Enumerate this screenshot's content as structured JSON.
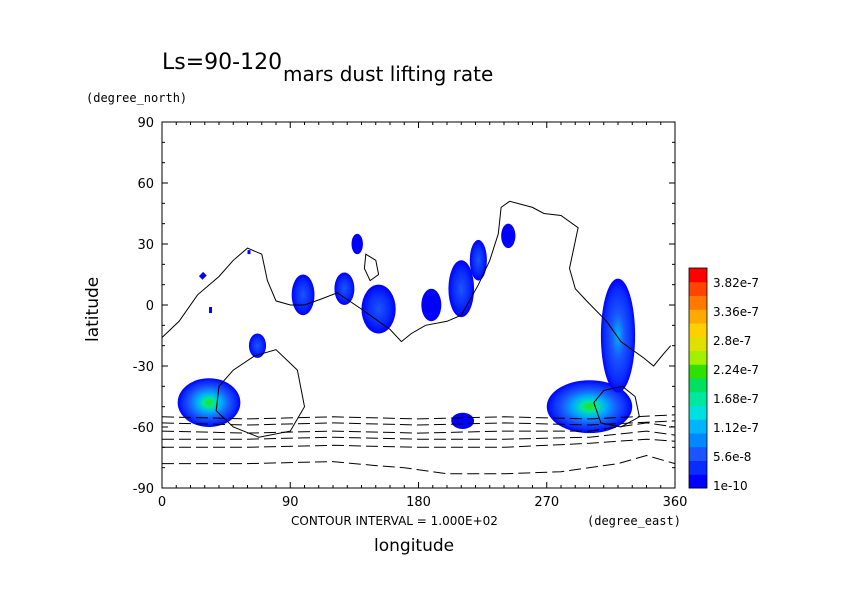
{
  "header": {
    "season_label": "Ls=90-120",
    "title": "mars dust lifting rate",
    "y_unit": "(degree_north)",
    "x_unit": "(degree_east)",
    "contour_note": "CONTOUR INTERVAL = 1.000E+02"
  },
  "chart_data": {
    "type": "heatmap",
    "title": "mars dust lifting rate",
    "xlabel": "longitude",
    "ylabel": "latitude",
    "xlim": [
      0,
      360
    ],
    "ylim": [
      -90,
      90
    ],
    "xticks": [
      0,
      90,
      180,
      270,
      360
    ],
    "yticks": [
      90,
      60,
      30,
      0,
      -30,
      -60,
      -90
    ],
    "colorbar": {
      "labels": [
        "3.82e-7",
        "3.36e-7",
        "2.8e-7",
        "2.24e-7",
        "1.68e-7",
        "1.12e-7",
        "5.6e-8",
        "1e-10"
      ],
      "colors": [
        "#0000ff",
        "#0a2cff",
        "#1a55ff",
        "#0088ff",
        "#00b4ff",
        "#00e0e0",
        "#00e8a0",
        "#00e060",
        "#30e000",
        "#a0f000",
        "#e0e000",
        "#ffd000",
        "#ffaa00",
        "#ff7800",
        "#ff4400",
        "#ff0000"
      ]
    },
    "regions": [
      {
        "lon": 33,
        "lat": -48,
        "rx": 22,
        "ry": 12,
        "peak": "1.68e-7"
      },
      {
        "lon": 67,
        "lat": -20,
        "rx": 6,
        "ry": 6,
        "peak": "5.6e-8"
      },
      {
        "lon": 99,
        "lat": 5,
        "rx": 8,
        "ry": 10,
        "peak": "5.6e-8"
      },
      {
        "lon": 128,
        "lat": 8,
        "rx": 7,
        "ry": 8,
        "peak": "5.6e-8"
      },
      {
        "lon": 137,
        "lat": 30,
        "rx": 4,
        "ry": 5,
        "peak": "1e-10"
      },
      {
        "lon": 152,
        "lat": -2,
        "rx": 12,
        "ry": 12,
        "peak": "5.6e-8"
      },
      {
        "lon": 189,
        "lat": 0,
        "rx": 7,
        "ry": 8,
        "peak": "1e-10"
      },
      {
        "lon": 210,
        "lat": 8,
        "rx": 9,
        "ry": 14,
        "peak": "5.6e-8"
      },
      {
        "lon": 222,
        "lat": 22,
        "rx": 6,
        "ry": 10,
        "peak": "5.6e-8"
      },
      {
        "lon": 243,
        "lat": 34,
        "rx": 5,
        "ry": 6,
        "peak": "1e-10"
      },
      {
        "lon": 211,
        "lat": -57,
        "rx": 8,
        "ry": 4,
        "peak": "1e-10"
      },
      {
        "lon": 300,
        "lat": -50,
        "rx": 30,
        "ry": 13,
        "peak": "1.68e-7"
      },
      {
        "lon": 320,
        "lat": -15,
        "rx": 12,
        "ry": 28,
        "peak": "1.12e-7"
      }
    ],
    "contours": {
      "coast": [
        [
          0,
          -16
        ],
        [
          12,
          -8
        ],
        [
          25,
          5
        ],
        [
          40,
          14
        ],
        [
          50,
          22
        ],
        [
          60,
          28
        ],
        [
          70,
          25
        ],
        [
          74,
          12
        ],
        [
          80,
          2
        ],
        [
          90,
          0
        ],
        [
          100,
          0
        ],
        [
          112,
          3
        ],
        [
          123,
          6
        ],
        [
          140,
          -2
        ],
        [
          160,
          -12
        ],
        [
          168,
          -18
        ],
        [
          175,
          -14
        ],
        [
          185,
          -10
        ],
        [
          200,
          -8
        ],
        [
          210,
          -5
        ],
        [
          222,
          10
        ],
        [
          230,
          22
        ],
        [
          236,
          35
        ],
        [
          238,
          48
        ],
        [
          244,
          51
        ],
        [
          260,
          48
        ],
        [
          268,
          45
        ],
        [
          280,
          44
        ],
        [
          292,
          38
        ],
        [
          286,
          18
        ],
        [
          290,
          8
        ],
        [
          298,
          2
        ],
        [
          312,
          -8
        ],
        [
          322,
          -18
        ],
        [
          338,
          -26
        ],
        [
          345,
          -30
        ],
        [
          352,
          -24
        ],
        [
          357,
          -20
        ]
      ],
      "loop_a": [
        [
          50,
          -32
        ],
        [
          40,
          -40
        ],
        [
          38,
          -52
        ],
        [
          50,
          -60
        ],
        [
          68,
          -65
        ],
        [
          90,
          -62
        ],
        [
          100,
          -50
        ],
        [
          95,
          -32
        ],
        [
          80,
          -22
        ],
        [
          65,
          -25
        ],
        [
          50,
          -32
        ]
      ],
      "loop_b": [
        [
          143,
          25
        ],
        [
          150,
          22
        ],
        [
          152,
          15
        ],
        [
          146,
          12
        ],
        [
          142,
          18
        ],
        [
          143,
          25
        ]
      ],
      "loop_c": [
        [
          303,
          -48
        ],
        [
          310,
          -42
        ],
        [
          323,
          -40
        ],
        [
          332,
          -45
        ],
        [
          335,
          -55
        ],
        [
          322,
          -60
        ],
        [
          308,
          -58
        ],
        [
          303,
          -48
        ]
      ],
      "dashed_lines": [
        [
          [
            0,
            -55
          ],
          [
            60,
            -56
          ],
          [
            120,
            -55
          ],
          [
            180,
            -56
          ],
          [
            240,
            -55
          ],
          [
            300,
            -56
          ],
          [
            360,
            -54
          ]
        ],
        [
          [
            0,
            -58
          ],
          [
            60,
            -59
          ],
          [
            120,
            -58
          ],
          [
            180,
            -59
          ],
          [
            240,
            -58
          ],
          [
            300,
            -59
          ],
          [
            360,
            -57
          ]
        ],
        [
          [
            0,
            -62
          ],
          [
            60,
            -63
          ],
          [
            120,
            -62
          ],
          [
            180,
            -63
          ],
          [
            240,
            -62
          ],
          [
            300,
            -62
          ],
          [
            340,
            -58
          ],
          [
            360,
            -60
          ]
        ],
        [
          [
            0,
            -66
          ],
          [
            60,
            -66
          ],
          [
            120,
            -65
          ],
          [
            180,
            -66
          ],
          [
            240,
            -66
          ],
          [
            300,
            -65
          ],
          [
            340,
            -62
          ],
          [
            360,
            -64
          ]
        ],
        [
          [
            0,
            -70
          ],
          [
            60,
            -70
          ],
          [
            120,
            -69
          ],
          [
            180,
            -70
          ],
          [
            240,
            -70
          ],
          [
            300,
            -68
          ],
          [
            340,
            -66
          ],
          [
            360,
            -67
          ]
        ],
        [
          [
            0,
            -78
          ],
          [
            60,
            -78
          ],
          [
            120,
            -77
          ],
          [
            150,
            -79
          ],
          [
            170,
            -80
          ],
          [
            200,
            -83
          ],
          [
            240,
            -83
          ],
          [
            280,
            -82
          ],
          [
            320,
            -78
          ],
          [
            340,
            -74
          ],
          [
            360,
            -78
          ]
        ]
      ]
    }
  }
}
